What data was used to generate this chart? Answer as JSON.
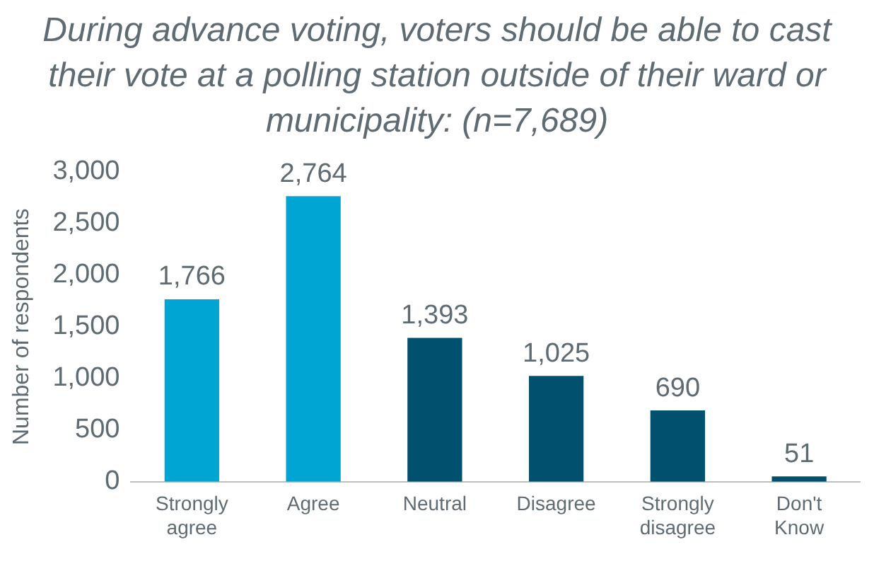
{
  "chart_data": {
    "type": "bar",
    "title": "During advance voting, voters should be able to cast their vote at a polling station outside of their ward or municipality:  (n=7,689)",
    "ylabel": "Number of respondents",
    "categories": [
      "Strongly agree",
      "Agree",
      "Neutral",
      "Disagree",
      "Strongly disagree",
      "Don't Know"
    ],
    "values": [
      1766,
      2764,
      1393,
      1025,
      690,
      51
    ],
    "colors": [
      "#00a5d4",
      "#00a5d4",
      "#00506e",
      "#00506e",
      "#00506e",
      "#00506e"
    ],
    "value_labels": [
      "1,766",
      "2,764",
      "1,393",
      "1,025",
      "690",
      "51"
    ],
    "ylim": [
      0,
      3000
    ],
    "yticks": [
      {
        "value": 0,
        "label": "0"
      },
      {
        "value": 500,
        "label": "500"
      },
      {
        "value": 1000,
        "label": "1,000"
      },
      {
        "value": 1500,
        "label": "1,500"
      },
      {
        "value": 2000,
        "label": "2,000"
      },
      {
        "value": 2500,
        "label": "2,500"
      },
      {
        "value": 3000,
        "label": "3,000"
      }
    ],
    "grid": false,
    "legend": false
  }
}
